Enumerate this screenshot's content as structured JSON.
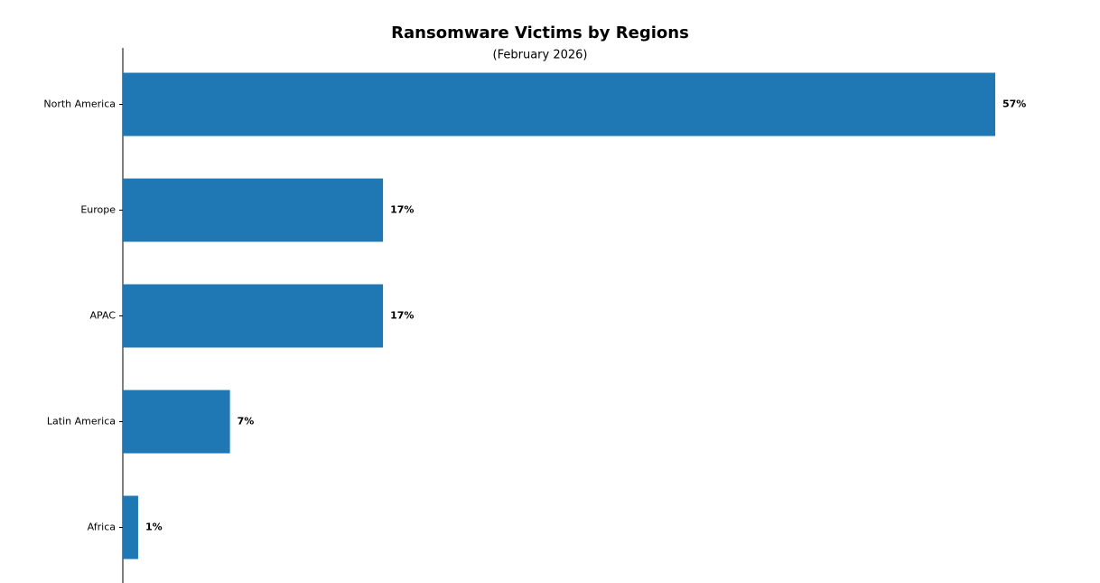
{
  "chart_data": {
    "type": "barh",
    "title": "Ransomware Victims by Regions",
    "subtitle": "(February 2026)",
    "categories": [
      "North America",
      "Europe",
      "APAC",
      "Latin America",
      "Africa"
    ],
    "values": [
      57,
      17,
      17,
      7,
      1
    ],
    "value_labels": [
      "57%",
      "17%",
      "17%",
      "7%",
      "1%"
    ],
    "color": "#1f77b4"
  }
}
